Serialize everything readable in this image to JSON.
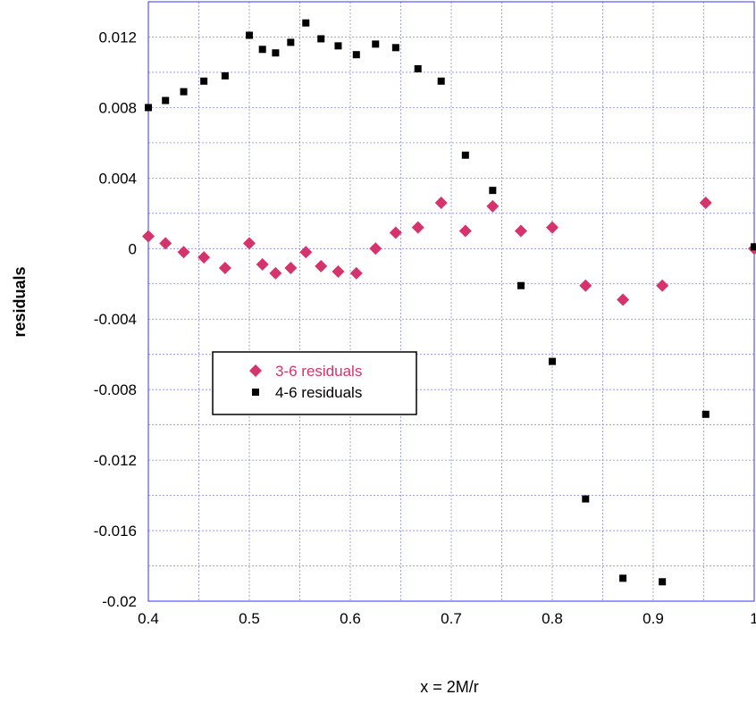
{
  "chart_data": {
    "type": "scatter",
    "xlabel": "x = 2M/r",
    "ylabel": "residuals",
    "xlim": [
      0.4,
      1.0
    ],
    "ylim": [
      -0.02,
      0.014
    ],
    "x_ticks": [
      0.4,
      0.5,
      0.6,
      0.7,
      0.8,
      0.9,
      1.0
    ],
    "x_tick_labels": [
      "0.4",
      "0.5",
      "0.6",
      "0.7",
      "0.8",
      "0.9",
      "1"
    ],
    "y_ticks": [
      -0.02,
      -0.016,
      -0.012,
      -0.008,
      -0.004,
      0,
      0.004,
      0.008,
      0.012
    ],
    "y_tick_labels": [
      "-0.02",
      "-0.016",
      "-0.012",
      "-0.008",
      "-0.004",
      "0",
      "0.004",
      "0.008",
      "0.012"
    ],
    "grid": true,
    "legend_position": "center-left",
    "series": [
      {
        "name": "3-6 residuals",
        "marker": "diamond",
        "color": "#d6336c",
        "points": [
          [
            0.4,
            0.0007
          ],
          [
            0.417,
            0.0003
          ],
          [
            0.435,
            -0.0002
          ],
          [
            0.455,
            -0.0005
          ],
          [
            0.476,
            -0.0011
          ],
          [
            0.5,
            0.0003
          ],
          [
            0.513,
            -0.0009
          ],
          [
            0.526,
            -0.0014
          ],
          [
            0.541,
            -0.0011
          ],
          [
            0.556,
            -0.0002
          ],
          [
            0.571,
            -0.001
          ],
          [
            0.588,
            -0.0013
          ],
          [
            0.606,
            -0.0014
          ],
          [
            0.625,
            0.0
          ],
          [
            0.645,
            0.0009
          ],
          [
            0.667,
            0.0012
          ],
          [
            0.69,
            0.0026
          ],
          [
            0.714,
            0.001
          ],
          [
            0.741,
            0.0024
          ],
          [
            0.769,
            0.001
          ],
          [
            0.8,
            0.0012
          ],
          [
            0.833,
            -0.0021
          ],
          [
            0.87,
            -0.0029
          ],
          [
            0.909,
            -0.0021
          ],
          [
            0.952,
            0.0026
          ],
          [
            1.0,
            0.0
          ]
        ]
      },
      {
        "name": "4-6 residuals",
        "marker": "square",
        "color": "#000000",
        "points": [
          [
            0.4,
            0.008
          ],
          [
            0.417,
            0.0084
          ],
          [
            0.435,
            0.0089
          ],
          [
            0.455,
            0.0095
          ],
          [
            0.476,
            0.0098
          ],
          [
            0.5,
            0.0121
          ],
          [
            0.513,
            0.0113
          ],
          [
            0.526,
            0.0111
          ],
          [
            0.541,
            0.0117
          ],
          [
            0.556,
            0.0128
          ],
          [
            0.571,
            0.0119
          ],
          [
            0.588,
            0.0115
          ],
          [
            0.606,
            0.011
          ],
          [
            0.625,
            0.0116
          ],
          [
            0.645,
            0.0114
          ],
          [
            0.667,
            0.0102
          ],
          [
            0.69,
            0.0095
          ],
          [
            0.714,
            0.0053
          ],
          [
            0.741,
            0.0033
          ],
          [
            0.769,
            -0.0021
          ],
          [
            0.8,
            -0.0064
          ],
          [
            0.833,
            -0.0142
          ],
          [
            0.87,
            -0.0187
          ],
          [
            0.909,
            -0.0189
          ],
          [
            0.952,
            -0.0094
          ],
          [
            1.0,
            0.0001
          ]
        ]
      }
    ]
  }
}
